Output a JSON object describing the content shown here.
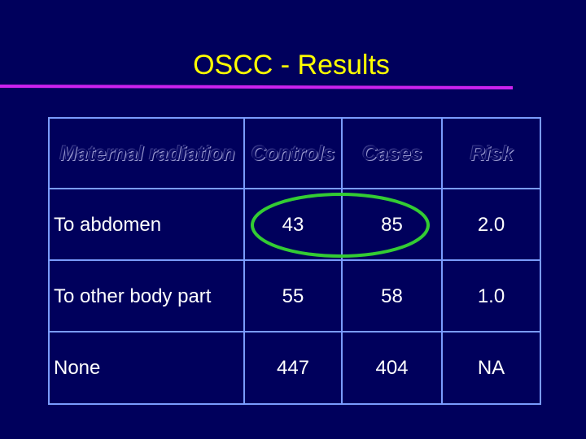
{
  "header": {
    "title": "OSCC - Results"
  },
  "table": {
    "columns": [
      "Maternal radiation",
      "Controls",
      "Cases",
      "Risk"
    ],
    "rows": [
      [
        "To abdomen",
        "43",
        "85",
        "2.0"
      ],
      [
        "To other body part",
        "55",
        "58",
        "1.0"
      ],
      [
        "None",
        "447",
        "404",
        "NA"
      ]
    ]
  }
}
